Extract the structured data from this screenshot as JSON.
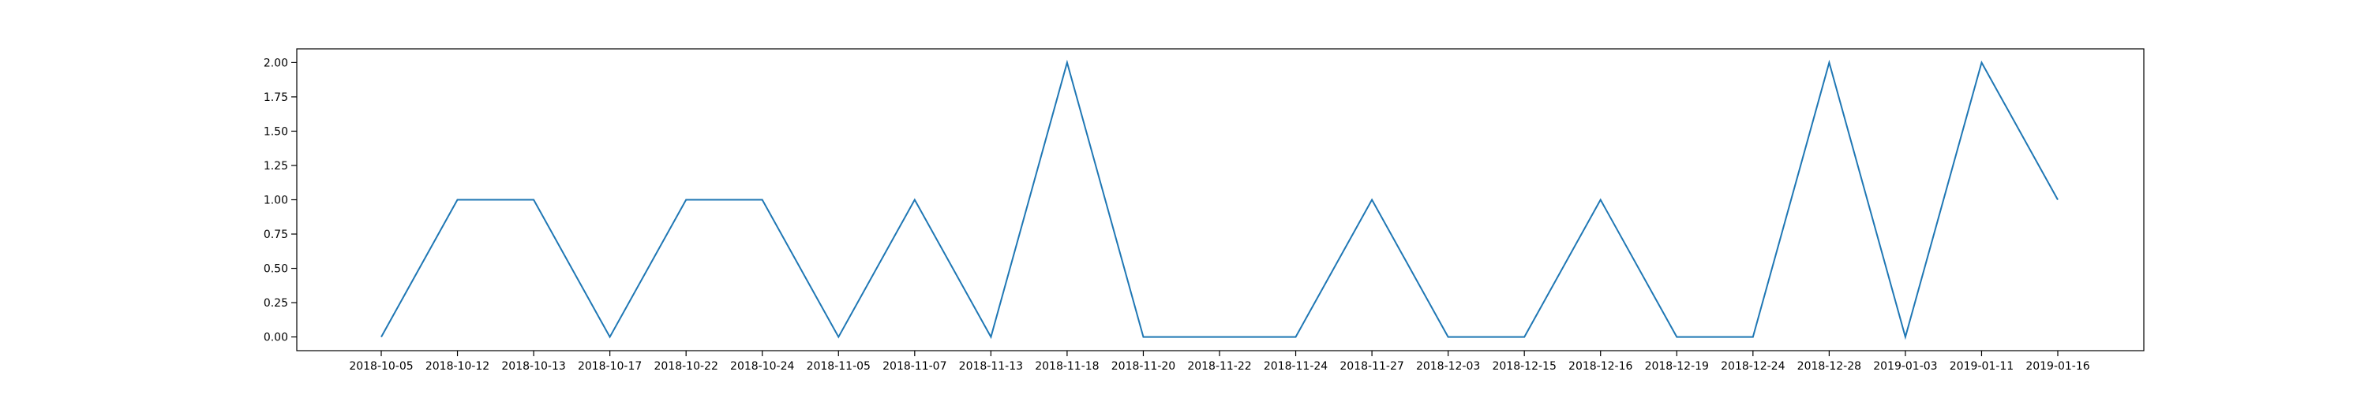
{
  "chart_data": {
    "type": "line",
    "title": "",
    "xlabel": "",
    "ylabel": "",
    "categories": [
      "2018-10-05",
      "2018-10-12",
      "2018-10-13",
      "2018-10-17",
      "2018-10-22",
      "2018-10-24",
      "2018-11-05",
      "2018-11-07",
      "2018-11-13",
      "2018-11-18",
      "2018-11-20",
      "2018-11-22",
      "2018-11-24",
      "2018-11-27",
      "2018-12-03",
      "2018-12-15",
      "2018-12-16",
      "2018-12-19",
      "2018-12-24",
      "2018-12-28",
      "2019-01-03",
      "2019-01-11",
      "2019-01-16"
    ],
    "series": [
      {
        "color": "#1f77b4",
        "values": [
          0,
          1,
          1,
          0,
          1,
          1,
          0,
          1,
          0,
          2,
          0,
          0,
          0,
          1,
          0,
          0,
          1,
          0,
          0,
          2,
          0,
          2,
          1
        ]
      }
    ],
    "ylim": [
      -0.1,
      2.1
    ],
    "yticks": [
      "0.00",
      "0.25",
      "0.50",
      "0.75",
      "1.00",
      "1.25",
      "1.50",
      "1.75",
      "2.00"
    ],
    "grid": false,
    "legend": "none"
  }
}
